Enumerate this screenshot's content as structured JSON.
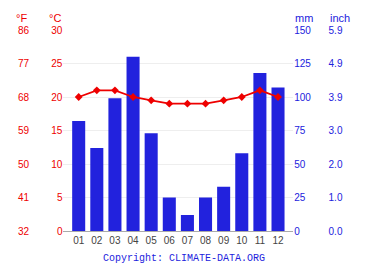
{
  "chart_data": {
    "type": "bar",
    "categories": [
      "01",
      "02",
      "03",
      "04",
      "05",
      "06",
      "07",
      "08",
      "09",
      "10",
      "11",
      "12"
    ],
    "series": [
      {
        "type": "bar",
        "color": "#2222dd",
        "axis": "y2",
        "values": [
          82,
          62,
          99,
          130,
          73,
          25,
          12,
          25,
          33,
          58,
          118,
          107
        ]
      },
      {
        "type": "line",
        "color": "#ee0000",
        "marker": "diamond",
        "line_style": "solid",
        "axis": "y",
        "values": [
          20.0,
          21.0,
          21.0,
          20.0,
          19.5,
          19.0,
          19.0,
          19.0,
          19.5,
          20.0,
          21.0,
          20.0
        ]
      }
    ],
    "ylabel": "°C",
    "ylim": [
      0,
      30
    ],
    "yticks": [
      0,
      5,
      10,
      15,
      20,
      25,
      30
    ],
    "y2label": "mm",
    "y2lim": [
      0,
      150
    ],
    "y2ticks": [
      0,
      25,
      50,
      75,
      100,
      125,
      150
    ],
    "y3label": "°F",
    "y3lim": [
      0,
      30
    ],
    "y3ticks": [
      {
        "value": 0,
        "label": "32"
      },
      {
        "value": 5,
        "label": "41"
      },
      {
        "value": 10,
        "label": "50"
      },
      {
        "value": 15,
        "label": "59"
      },
      {
        "value": 20,
        "label": "68"
      },
      {
        "value": 25,
        "label": "77"
      },
      {
        "value": 30,
        "label": "86"
      }
    ],
    "y4label": "inch",
    "y4lim": [
      0,
      150
    ],
    "y4ticks": [
      {
        "value": 0,
        "label": "0.0"
      },
      {
        "value": 25,
        "label": "1.0"
      },
      {
        "value": 50,
        "label": "2.0"
      },
      {
        "value": 75,
        "label": "3.0"
      },
      {
        "value": 100,
        "label": "3.9"
      },
      {
        "value": 125,
        "label": "4.9"
      },
      {
        "value": 150,
        "label": "5.9"
      }
    ],
    "grid": true,
    "annotations": [
      "Copyright: CLIMATE-DATA.ORG"
    ]
  }
}
